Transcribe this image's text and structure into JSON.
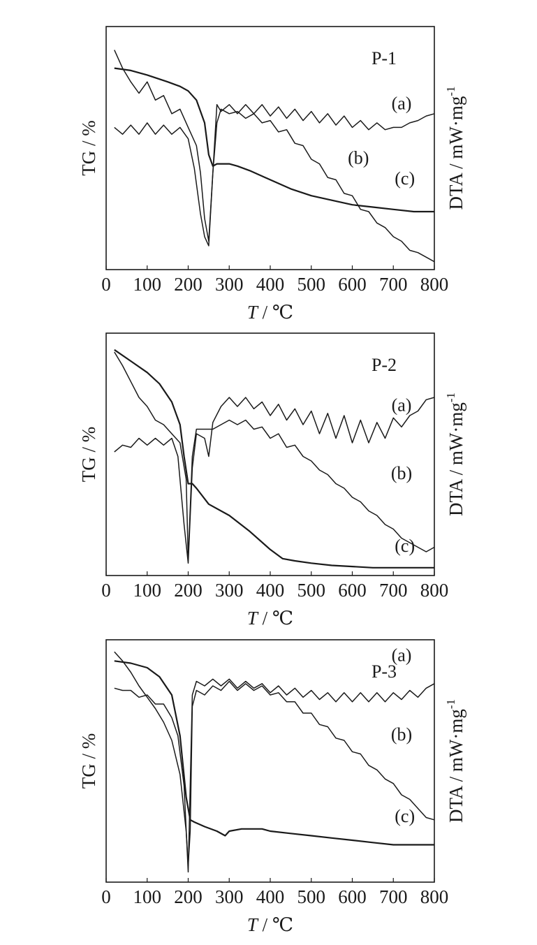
{
  "colors": {
    "line": "#1a1a1a",
    "background": "#ffffff"
  },
  "y_left_label": "TG / %",
  "y_right_label": "DTA / mW·mg",
  "y_right_label_exp": "-1",
  "x_label_var": "T",
  "x_label_unit": " / ℃",
  "chart_data": [
    {
      "type": "line",
      "panel_label": "P-1",
      "xlabel": "T / ℃",
      "ylabel_left": "TG / %",
      "ylabel_right": "DTA / mW·mg-1",
      "xlim": [
        0,
        800
      ],
      "xticks": [
        0,
        100,
        200,
        300,
        400,
        500,
        600,
        700,
        800
      ],
      "ylim": [
        0,
        100
      ],
      "y_ticks_shown": false,
      "grid": false,
      "series": [
        {
          "name": "(a)",
          "x": [
            20,
            40,
            60,
            80,
            100,
            120,
            140,
            160,
            180,
            200,
            215,
            230,
            240,
            250,
            260,
            270,
            280,
            300,
            320,
            340,
            360,
            380,
            400,
            420,
            440,
            460,
            480,
            500,
            520,
            540,
            560,
            580,
            600,
            620,
            640,
            660,
            680,
            700,
            720,
            740,
            760,
            780,
            800
          ],
          "y": [
            60,
            57,
            61,
            57,
            62,
            57,
            61,
            57,
            60,
            55,
            42,
            22,
            12,
            8,
            40,
            70,
            67,
            70,
            66,
            70,
            66,
            70,
            65,
            69,
            64,
            68,
            63,
            67,
            62,
            66,
            61,
            65,
            60,
            63,
            59,
            62,
            59,
            60,
            60,
            62,
            63,
            65,
            66
          ],
          "label_pos": [
            720,
            68
          ]
        },
        {
          "name": "(b)",
          "x": [
            20,
            40,
            60,
            80,
            100,
            120,
            140,
            160,
            180,
            200,
            220,
            230,
            240,
            250,
            260,
            270,
            280,
            300,
            320,
            340,
            360,
            380,
            400,
            420,
            440,
            460,
            480,
            500,
            520,
            540,
            560,
            580,
            600,
            620,
            640,
            660,
            680,
            700,
            720,
            740,
            760,
            780,
            800
          ],
          "y": [
            94,
            86,
            80,
            75,
            80,
            72,
            74,
            66,
            68,
            60,
            52,
            40,
            20,
            10,
            40,
            62,
            68,
            66,
            67,
            64,
            66,
            62,
            63,
            58,
            59,
            53,
            52,
            46,
            44,
            38,
            37,
            31,
            30,
            24,
            23,
            18,
            16,
            12,
            10,
            6,
            5,
            3,
            1
          ],
          "label_pos": [
            615,
            44
          ]
        },
        {
          "name": "(c)",
          "x": [
            20,
            60,
            100,
            150,
            180,
            200,
            220,
            240,
            250,
            260,
            270,
            280,
            300,
            320,
            350,
            400,
            450,
            500,
            550,
            600,
            650,
            700,
            750,
            800
          ],
          "y": [
            86,
            85,
            83,
            80,
            78,
            76,
            72,
            62,
            48,
            43,
            44,
            44,
            44,
            43,
            41,
            37,
            33,
            30,
            28,
            26,
            25,
            24,
            23,
            23
          ],
          "label_pos": [
            728,
            35
          ]
        }
      ]
    },
    {
      "type": "line",
      "panel_label": "P-2",
      "xlabel": "T / ℃",
      "ylabel_left": "TG / %",
      "ylabel_right": "DTA / mW·mg-1",
      "xlim": [
        0,
        800
      ],
      "xticks": [
        0,
        100,
        200,
        300,
        400,
        500,
        600,
        700,
        800
      ],
      "ylim": [
        0,
        100
      ],
      "y_ticks_shown": false,
      "grid": false,
      "series": [
        {
          "name": "(a)",
          "x": [
            20,
            40,
            60,
            80,
            100,
            120,
            140,
            160,
            175,
            190,
            200,
            210,
            220,
            240,
            250,
            260,
            280,
            300,
            320,
            340,
            360,
            380,
            400,
            420,
            440,
            460,
            480,
            500,
            520,
            540,
            560,
            580,
            600,
            620,
            640,
            660,
            680,
            700,
            720,
            740,
            760,
            780,
            800
          ],
          "y": [
            52,
            55,
            54,
            58,
            55,
            58,
            55,
            58,
            50,
            20,
            3,
            45,
            60,
            58,
            50,
            65,
            72,
            76,
            72,
            76,
            71,
            74,
            68,
            73,
            66,
            71,
            64,
            70,
            60,
            69,
            58,
            68,
            56,
            66,
            56,
            65,
            58,
            67,
            63,
            68,
            70,
            75,
            76
          ],
          "label_pos": [
            720,
            70
          ]
        },
        {
          "name": "(b)",
          "x": [
            20,
            40,
            60,
            80,
            100,
            120,
            140,
            160,
            180,
            195,
            200,
            210,
            220,
            240,
            260,
            280,
            300,
            320,
            340,
            360,
            380,
            400,
            420,
            440,
            460,
            480,
            500,
            520,
            540,
            560,
            580,
            600,
            620,
            640,
            660,
            680,
            700,
            720,
            740,
            760,
            780,
            800
          ],
          "y": [
            96,
            90,
            83,
            76,
            72,
            66,
            64,
            60,
            56,
            40,
            5,
            50,
            62,
            62,
            62,
            64,
            66,
            64,
            66,
            62,
            63,
            58,
            60,
            54,
            55,
            50,
            48,
            44,
            42,
            38,
            36,
            32,
            30,
            26,
            24,
            20,
            18,
            14,
            12,
            10,
            8,
            10
          ],
          "label_pos": [
            720,
            40
          ]
        },
        {
          "name": "(c)",
          "x": [
            20,
            60,
            100,
            130,
            160,
            180,
            190,
            200,
            210,
            220,
            250,
            300,
            350,
            400,
            430,
            460,
            500,
            550,
            600,
            650,
            700,
            750,
            800
          ],
          "y": [
            97,
            92,
            87,
            82,
            74,
            64,
            50,
            38,
            38,
            36,
            29,
            24,
            17,
            9,
            5,
            4,
            3,
            2,
            1.5,
            1,
            1,
            1,
            1
          ],
          "label_pos": [
            728,
            8
          ]
        }
      ]
    },
    {
      "type": "line",
      "panel_label": "P-3",
      "xlabel": "T / ℃",
      "ylabel_left": "TG / %",
      "ylabel_right": "DTA / mW·mg-1",
      "xlim": [
        0,
        800
      ],
      "xticks": [
        0,
        100,
        200,
        300,
        400,
        500,
        600,
        700,
        800
      ],
      "ylim": [
        0,
        100
      ],
      "y_ticks_shown": false,
      "grid": false,
      "series": [
        {
          "name": "(a)",
          "x": [
            20,
            40,
            60,
            80,
            100,
            120,
            140,
            160,
            175,
            190,
            200,
            210,
            220,
            240,
            260,
            280,
            300,
            320,
            340,
            360,
            380,
            400,
            420,
            440,
            460,
            480,
            500,
            520,
            540,
            560,
            580,
            600,
            620,
            640,
            660,
            680,
            700,
            720,
            740,
            760,
            780,
            800
          ],
          "y": [
            83,
            82,
            82,
            79,
            80,
            76,
            76,
            70,
            62,
            40,
            2,
            80,
            86,
            84,
            87,
            84,
            87,
            83,
            86,
            83,
            85,
            81,
            84,
            80,
            83,
            79,
            82,
            78,
            81,
            77,
            81,
            77,
            81,
            77,
            81,
            77,
            81,
            78,
            82,
            79,
            83,
            85
          ],
          "label_pos": [
            720,
            95
          ]
        },
        {
          "name": "(b)",
          "x": [
            20,
            40,
            60,
            80,
            100,
            120,
            140,
            160,
            180,
            195,
            200,
            205,
            210,
            220,
            240,
            260,
            280,
            300,
            320,
            340,
            360,
            380,
            400,
            420,
            440,
            460,
            480,
            500,
            520,
            540,
            560,
            580,
            600,
            620,
            640,
            660,
            680,
            700,
            720,
            740,
            760,
            780,
            800
          ],
          "y": [
            99,
            95,
            90,
            84,
            79,
            74,
            68,
            60,
            45,
            20,
            5,
            20,
            75,
            82,
            80,
            84,
            82,
            86,
            82,
            85,
            82,
            84,
            80,
            81,
            77,
            77,
            72,
            72,
            67,
            66,
            61,
            60,
            55,
            54,
            49,
            47,
            43,
            41,
            36,
            34,
            30,
            26,
            25
          ],
          "label_pos": [
            720,
            60
          ]
        },
        {
          "name": "(c)",
          "x": [
            20,
            60,
            100,
            130,
            160,
            180,
            195,
            205,
            215,
            240,
            270,
            290,
            300,
            330,
            350,
            380,
            400,
            450,
            500,
            550,
            600,
            650,
            700,
            750,
            800
          ],
          "y": [
            95,
            94,
            92,
            88,
            80,
            62,
            35,
            25,
            24,
            22,
            20,
            18,
            20,
            21,
            21,
            21,
            20,
            19,
            18,
            17,
            16,
            15,
            14,
            14,
            14
          ],
          "label_pos": [
            728,
            24
          ]
        }
      ]
    }
  ]
}
